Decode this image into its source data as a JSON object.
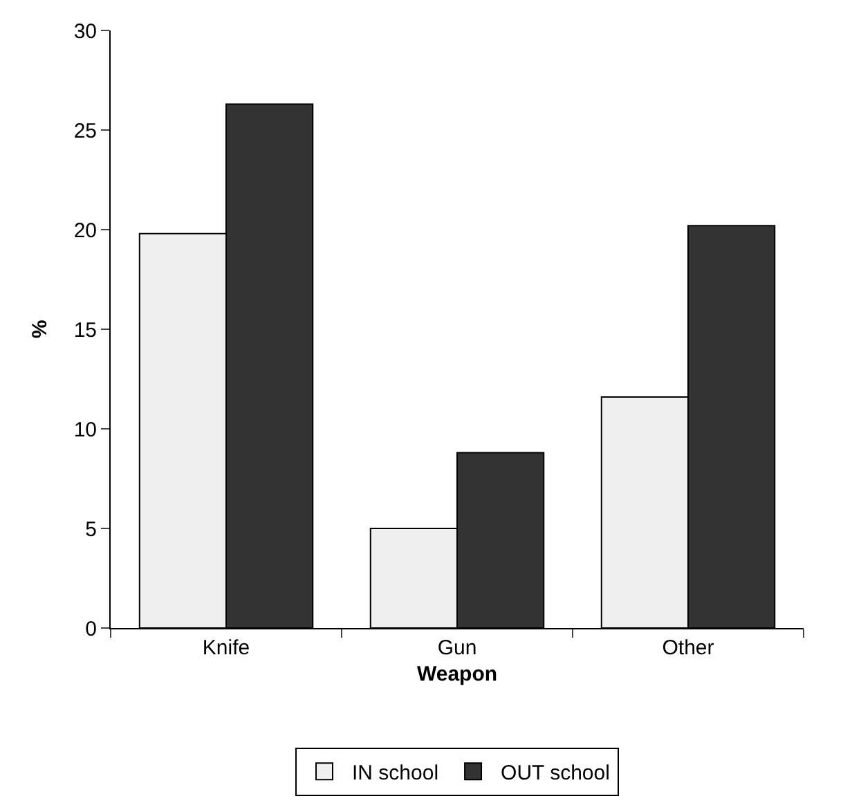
{
  "chart_data": {
    "type": "bar",
    "xlabel": "Weapon",
    "ylabel": "%",
    "categories": [
      "Knife",
      "Gun",
      "Other"
    ],
    "series": [
      {
        "name": "IN school",
        "color": "#efefef",
        "values": [
          19.8,
          5.0,
          11.6
        ]
      },
      {
        "name": "OUT school",
        "color": "#333333",
        "values": [
          26.3,
          8.8,
          20.2
        ]
      }
    ],
    "ylim": [
      0,
      30
    ],
    "yticks": [
      0,
      5,
      10,
      15,
      20,
      25,
      30
    ],
    "legend": "bottom"
  }
}
